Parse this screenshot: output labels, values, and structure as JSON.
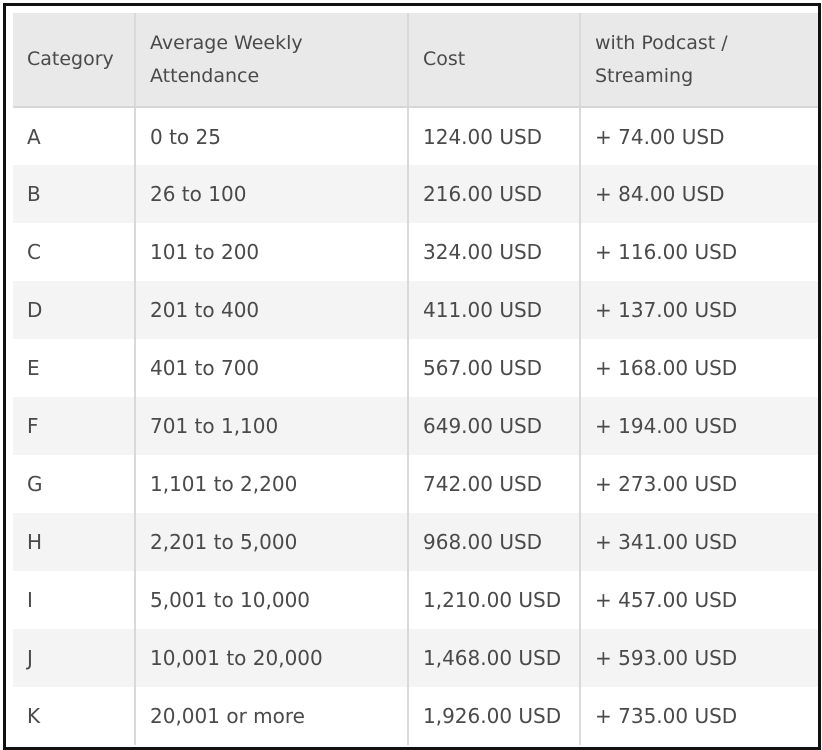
{
  "table": {
    "headers": {
      "category": "Category",
      "attendance_line1": "Average Weekly",
      "attendance_line2": "Attendance",
      "cost": "Cost",
      "podcast_line1": "with Podcast /",
      "podcast_line2": "Streaming"
    },
    "rows": [
      {
        "category": "A",
        "attendance": "0 to 25",
        "cost": "124.00 USD",
        "podcast": "+ 74.00 USD"
      },
      {
        "category": "B",
        "attendance": "26 to 100",
        "cost": "216.00 USD",
        "podcast": "+ 84.00 USD"
      },
      {
        "category": "C",
        "attendance": "101 to 200",
        "cost": "324.00 USD",
        "podcast": "+ 116.00 USD"
      },
      {
        "category": "D",
        "attendance": "201 to 400",
        "cost": "411.00 USD",
        "podcast": "+ 137.00 USD"
      },
      {
        "category": "E",
        "attendance": "401 to 700",
        "cost": "567.00 USD",
        "podcast": "+ 168.00 USD"
      },
      {
        "category": "F",
        "attendance": "701 to 1,100",
        "cost": "649.00 USD",
        "podcast": "+ 194.00 USD"
      },
      {
        "category": "G",
        "attendance": "1,101 to 2,200",
        "cost": "742.00 USD",
        "podcast": "+ 273.00 USD"
      },
      {
        "category": "H",
        "attendance": "2,201 to 5,000",
        "cost": "968.00 USD",
        "podcast": "+ 341.00 USD"
      },
      {
        "category": "I",
        "attendance": "5,001 to 10,000",
        "cost": "1,210.00 USD",
        "podcast": "+ 457.00 USD"
      },
      {
        "category": "J",
        "attendance": "10,001 to 20,000",
        "cost": "1,468.00 USD",
        "podcast": "+ 593.00 USD"
      },
      {
        "category": "K",
        "attendance": "20,001 or more",
        "cost": "1,926.00 USD",
        "podcast": "+ 735.00 USD"
      }
    ]
  }
}
